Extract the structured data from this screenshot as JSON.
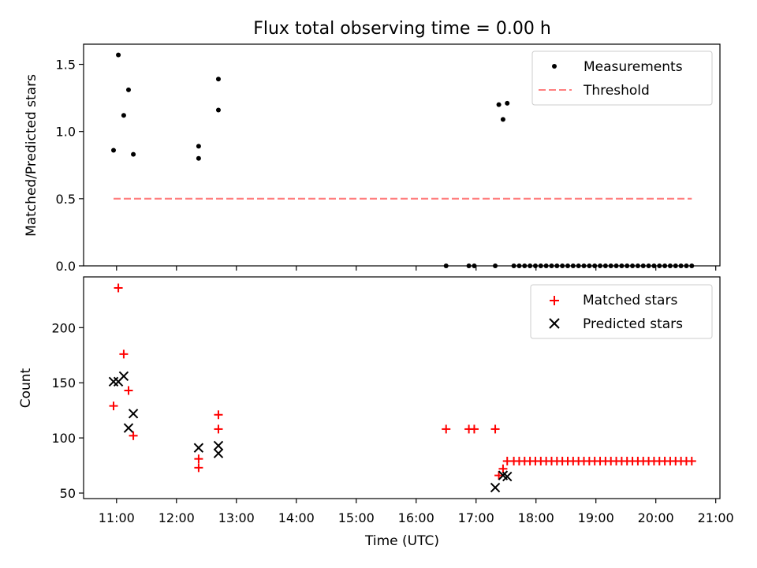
{
  "colors": {
    "measurement": "#000000",
    "threshold": "#ff7f7f",
    "matched": "#ff0000",
    "predicted": "#000000"
  },
  "chart_data": [
    {
      "type": "scatter",
      "title": "Flux total observing time = 0.00 h",
      "xlabel": "",
      "ylabel": "Matched/Predicted stars",
      "xlim": [
        10.45,
        21.07
      ],
      "ylim": [
        0.0,
        1.65
      ],
      "yticks": [
        0.0,
        0.5,
        1.0,
        1.5
      ],
      "ytick_labels": [
        "0.0",
        "0.5",
        "1.0",
        "1.5"
      ],
      "legend_position": "upper-right",
      "legend": [
        "Measurements",
        "Threshold"
      ],
      "series": [
        {
          "name": "Measurements",
          "marker": "dot",
          "x": [
            10.95,
            11.03,
            11.12,
            11.2,
            11.28,
            12.37,
            12.37,
            12.7,
            12.7,
            16.5,
            16.88,
            16.97,
            17.32,
            17.38,
            17.45,
            17.52,
            17.63,
            17.72,
            17.81,
            17.9,
            17.99,
            18.08,
            18.17,
            18.26,
            18.35,
            18.44,
            18.53,
            18.62,
            18.71,
            18.8,
            18.89,
            18.98,
            19.07,
            19.16,
            19.25,
            19.34,
            19.43,
            19.52,
            19.61,
            19.7,
            19.79,
            19.88,
            19.97,
            20.06,
            20.15,
            20.24,
            20.33,
            20.42,
            20.51,
            20.6
          ],
          "y": [
            0.86,
            1.57,
            1.12,
            1.31,
            0.83,
            0.89,
            0.8,
            1.39,
            1.16,
            0.0,
            0.0,
            0.0,
            0.0,
            1.2,
            1.09,
            1.21,
            0,
            0,
            0,
            0,
            0,
            0,
            0,
            0,
            0,
            0,
            0,
            0,
            0,
            0,
            0,
            0,
            0,
            0,
            0,
            0,
            0,
            0,
            0,
            0,
            0,
            0,
            0,
            0,
            0,
            0,
            0,
            0,
            0,
            0
          ]
        },
        {
          "name": "Threshold",
          "marker": "dashed-line",
          "x": [
            10.95,
            20.6
          ],
          "y": [
            0.5,
            0.5
          ]
        }
      ]
    },
    {
      "type": "scatter",
      "title": "",
      "xlabel": "Time (UTC)",
      "ylabel": "Count",
      "xlim": [
        10.45,
        21.07
      ],
      "ylim": [
        45,
        246
      ],
      "yticks": [
        50,
        100,
        150,
        200
      ],
      "ytick_labels": [
        "50",
        "100",
        "150",
        "200"
      ],
      "xticks": [
        11,
        12,
        13,
        14,
        15,
        16,
        17,
        18,
        19,
        20,
        21
      ],
      "xtick_labels": [
        "11:00",
        "12:00",
        "13:00",
        "14:00",
        "15:00",
        "16:00",
        "17:00",
        "18:00",
        "19:00",
        "20:00",
        "21:00"
      ],
      "legend_position": "upper-right",
      "legend": [
        "Matched stars",
        "Predicted stars"
      ],
      "series": [
        {
          "name": "Matched stars",
          "marker": "plus",
          "x": [
            10.95,
            11.03,
            11.12,
            11.2,
            11.28,
            12.37,
            12.37,
            12.7,
            12.7,
            16.5,
            16.88,
            16.97,
            17.32,
            17.38,
            17.45,
            17.52,
            17.63,
            17.72,
            17.81,
            17.9,
            17.99,
            18.08,
            18.17,
            18.26,
            18.35,
            18.44,
            18.53,
            18.62,
            18.71,
            18.8,
            18.89,
            18.98,
            19.07,
            19.16,
            19.25,
            19.34,
            19.43,
            19.52,
            19.61,
            19.7,
            19.79,
            19.88,
            19.97,
            20.06,
            20.15,
            20.24,
            20.33,
            20.42,
            20.51,
            20.6
          ],
          "y": [
            129,
            236,
            176,
            143,
            102,
            81,
            73,
            121,
            108,
            108,
            108,
            108,
            108,
            66,
            72,
            79,
            79,
            79,
            79,
            79,
            79,
            79,
            79,
            79,
            79,
            79,
            79,
            79,
            79,
            79,
            79,
            79,
            79,
            79,
            79,
            79,
            79,
            79,
            79,
            79,
            79,
            79,
            79,
            79,
            79,
            79,
            79,
            79,
            79,
            79
          ]
        },
        {
          "name": "Predicted stars",
          "marker": "x",
          "x": [
            10.95,
            11.03,
            11.12,
            11.2,
            11.28,
            12.37,
            12.7,
            12.7,
            17.32,
            17.45,
            17.52
          ],
          "y": [
            151,
            151,
            156,
            109,
            122,
            91,
            93,
            86,
            55,
            66,
            65
          ]
        }
      ]
    }
  ]
}
